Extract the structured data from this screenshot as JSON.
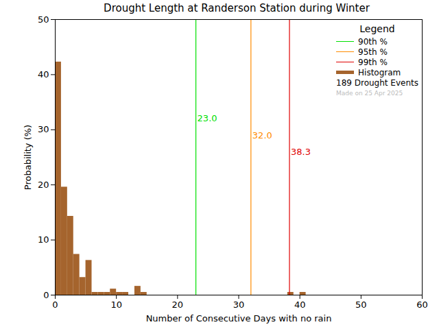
{
  "chart_data": {
    "type": "histogram",
    "title": "Drought Length at Randerson Station during Winter",
    "x_label": "Number of Consecutive Days with no rain",
    "y_label": "Probability (%)",
    "bins": [
      0,
      1,
      2,
      3,
      4,
      5,
      6,
      7,
      8,
      9,
      10,
      11,
      12,
      13,
      14,
      15,
      16,
      17,
      18,
      19,
      20,
      21,
      22,
      23,
      24,
      25,
      26,
      27,
      28,
      29,
      30,
      31,
      32,
      33,
      34,
      35,
      36,
      37,
      38,
      39,
      40,
      41
    ],
    "values": [
      42.3,
      19.6,
      14.3,
      7.4,
      3.2,
      6.3,
      0.5,
      0.5,
      0.5,
      1.1,
      0.5,
      0.5,
      0,
      1.6,
      0.5,
      0,
      0,
      0,
      0,
      0,
      0,
      0,
      0,
      0,
      0,
      0,
      0,
      0,
      0,
      0,
      0,
      0,
      0,
      0,
      0,
      0,
      0,
      0,
      0.5,
      0,
      0.5
    ],
    "color": "#a5642d",
    "name": "Histogram",
    "xlim": [
      0,
      60
    ],
    "ylim": [
      0,
      50
    ],
    "xticks": [
      0,
      10,
      20,
      30,
      40,
      50,
      60
    ],
    "yticks": [
      0,
      10,
      20,
      30,
      40,
      50
    ],
    "grid": false,
    "legend": "upper right",
    "legend_title": "Legend",
    "percentiles": [
      {
        "name": "90th %",
        "value": 23.0,
        "label": "23.0",
        "color": "#00e000"
      },
      {
        "name": "95th %",
        "value": 32.0,
        "label": "32.0",
        "color": "#ff8c00"
      },
      {
        "name": "99th %",
        "value": 38.3,
        "label": "38.3",
        "color": "#e00000"
      }
    ],
    "event_text": "189 Drought Events",
    "note": "Made on 25 Apr 2025"
  }
}
